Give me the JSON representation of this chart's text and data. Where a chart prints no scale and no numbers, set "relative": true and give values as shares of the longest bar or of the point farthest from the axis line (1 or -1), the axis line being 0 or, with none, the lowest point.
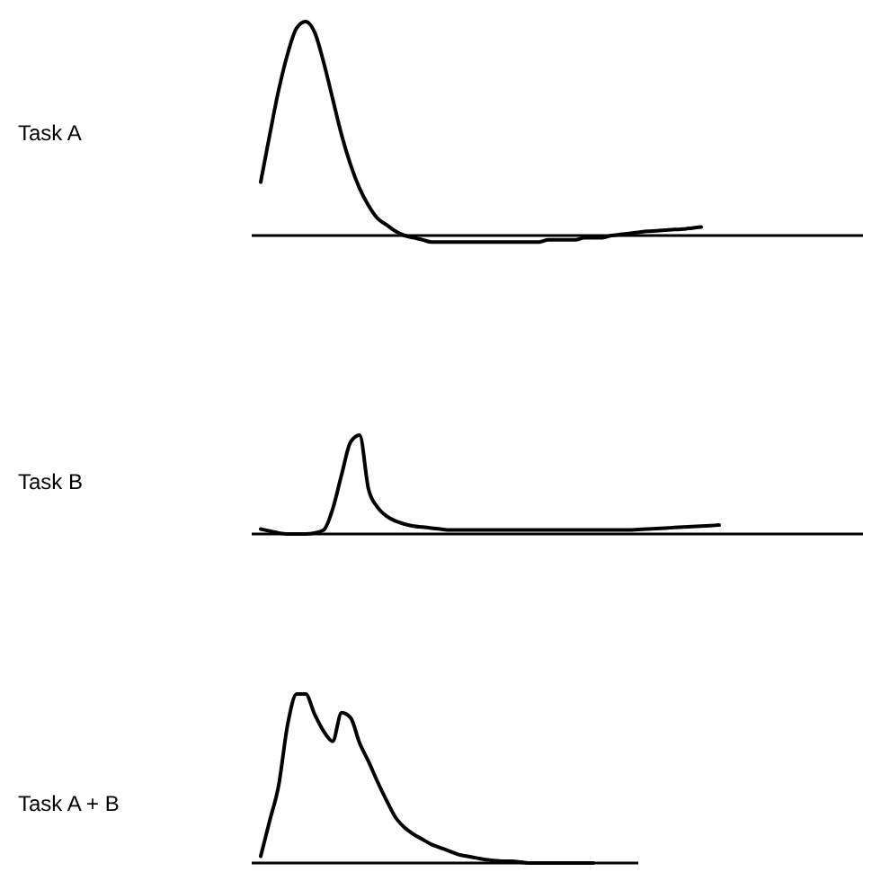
{
  "chart_data": [
    {
      "type": "line",
      "ylabel": "Task A",
      "relative": true,
      "categories": [
        null,
        null,
        null,
        null,
        null,
        null,
        null,
        null,
        null,
        null,
        null,
        null,
        null,
        null,
        null,
        null,
        null,
        null,
        null,
        null,
        null,
        null,
        null,
        null,
        null,
        null,
        null,
        null,
        null,
        null,
        null,
        null,
        null,
        null,
        null,
        null,
        null,
        null,
        null,
        null,
        null,
        null,
        null,
        null,
        null,
        null,
        null,
        null,
        null,
        null,
        null,
        null,
        null,
        null,
        null,
        null,
        null,
        null,
        null,
        null,
        null,
        null,
        null,
        null,
        null,
        null,
        null,
        null
      ],
      "series": [
        {
          "color": "#000000",
          "values": [
            0.25,
            0.47,
            0.68,
            0.85,
            0.97,
            1,
            0.95,
            0.81,
            0.64,
            0.47,
            0.33,
            0.22,
            0.14,
            0.08,
            0.05,
            0.02,
            0,
            -0.01,
            -0.02,
            -0.03,
            -0.03,
            -0.03,
            -0.03,
            -0.03,
            -0.03,
            -0.03,
            -0.03,
            -0.03,
            -0.03,
            -0.03,
            -0.03,
            -0.03,
            -0.02,
            -0.02,
            -0.02,
            -0.02,
            -0.01,
            -0.01,
            -0.01,
            0,
            0.005,
            0.01,
            0.015,
            0.02,
            0.022,
            0.025,
            0.028,
            0.03,
            0.035,
            0.04,
            null,
            null,
            null,
            null,
            null,
            null,
            null,
            null,
            null,
            null,
            null,
            null,
            null,
            null,
            null,
            null,
            null,
            null
          ]
        }
      ]
    },
    {
      "type": "line",
      "ylabel": "Task B",
      "relative": true,
      "categories": [
        null,
        null,
        null,
        null,
        null,
        null,
        null,
        null,
        null,
        null,
        null,
        null,
        null,
        null,
        null,
        null,
        null,
        null,
        null,
        null,
        null,
        null,
        null,
        null,
        null,
        null,
        null,
        null,
        null,
        null,
        null,
        null,
        null,
        null,
        null,
        null,
        null,
        null,
        null,
        null,
        null,
        null,
        null,
        null,
        null,
        null,
        null,
        null,
        null,
        null,
        null,
        null,
        null,
        null,
        null,
        null,
        null,
        null,
        null,
        null,
        null,
        null,
        null,
        null,
        null,
        null,
        null,
        null
      ],
      "series": [
        {
          "color": "#000000",
          "values": [
            0.05,
            0.03,
            0.01,
            0,
            0,
            0,
            0.01,
            0.04,
            0.25,
            0.6,
            0.93,
            1,
            0.45,
            0.27,
            0.18,
            0.13,
            0.1,
            0.08,
            0.07,
            0.06,
            0.05,
            0.04,
            0.04,
            0.04,
            0.04,
            0.04,
            0.04,
            0.04,
            0.04,
            0.04,
            0.04,
            0.04,
            0.04,
            0.04,
            0.04,
            0.04,
            0.04,
            0.04,
            0.04,
            0.04,
            0.04,
            0.04,
            0.045,
            0.05,
            0.055,
            0.06,
            0.065,
            0.07,
            0.075,
            0.08,
            0.085,
            0.09,
            null,
            null,
            null,
            null,
            null,
            null,
            null,
            null,
            null,
            null,
            null,
            null,
            null,
            null,
            null,
            null
          ]
        }
      ]
    },
    {
      "type": "line",
      "ylabel": "Task A + B",
      "relative": true,
      "categories": [
        null,
        null,
        null,
        null,
        null,
        null,
        null,
        null,
        null,
        null,
        null,
        null,
        null,
        null,
        null,
        null,
        null,
        null,
        null,
        null,
        null,
        null,
        null,
        null,
        null,
        null,
        null,
        null,
        null,
        null,
        null,
        null,
        null,
        null,
        null,
        null,
        null,
        null,
        null,
        null,
        null,
        null,
        null
      ],
      "series": [
        {
          "color": "#000000",
          "values": [
            0.04,
            0.25,
            0.46,
            0.82,
            1,
            1,
            0.88,
            0.78,
            0.72,
            0.89,
            0.86,
            0.71,
            0.6,
            0.48,
            0.37,
            0.27,
            0.21,
            0.17,
            0.14,
            0.11,
            0.09,
            0.07,
            0.05,
            0.04,
            0.03,
            0.02,
            0.015,
            0.01,
            0.01,
            0.005,
            0,
            0,
            0,
            0,
            0,
            0,
            0,
            0,
            null,
            null,
            null,
            null,
            null
          ]
        }
      ]
    }
  ]
}
